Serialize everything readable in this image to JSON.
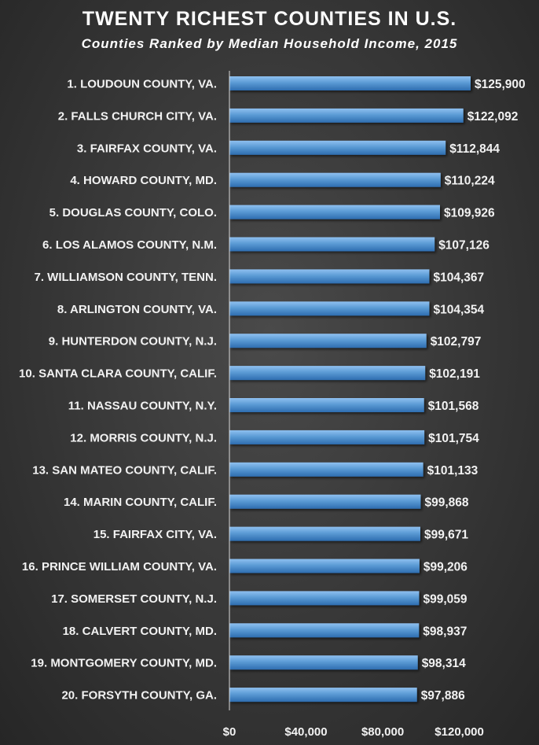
{
  "chart_data": {
    "type": "bar",
    "orientation": "horizontal",
    "title": "TWENTY RICHEST COUNTIES IN U.S.",
    "subtitle": "Counties Ranked by Median Household Income, 2015",
    "categories": [
      "1. LOUDOUN COUNTY, VA.",
      "2. FALLS CHURCH CITY, VA.",
      "3. FAIRFAX COUNTY, VA.",
      "4. HOWARD COUNTY, MD.",
      "5. DOUGLAS COUNTY, COLO.",
      "6. LOS ALAMOS COUNTY, N.M.",
      "7. WILLIAMSON COUNTY, TENN.",
      "8. ARLINGTON COUNTY, VA.",
      "9. HUNTERDON COUNTY, N.J.",
      "10. SANTA CLARA COUNTY, CALIF.",
      "11. NASSAU COUNTY, N.Y.",
      "12. MORRIS COUNTY, N.J.",
      "13. SAN MATEO COUNTY, CALIF.",
      "14. MARIN COUNTY, CALIF.",
      "15. FAIRFAX CITY, VA.",
      "16. PRINCE WILLIAM COUNTY, VA.",
      "17. SOMERSET COUNTY, N.J.",
      "18. CALVERT COUNTY, MD.",
      "19. MONTGOMERY COUNTY, MD.",
      "20. FORSYTH COUNTY, GA."
    ],
    "values": [
      125900,
      122092,
      112844,
      110224,
      109926,
      107126,
      104367,
      104354,
      102797,
      102191,
      101568,
      101754,
      101133,
      99868,
      99671,
      99206,
      99059,
      98937,
      98314,
      97886
    ],
    "data_labels": [
      "$125,900",
      "$122,092",
      "$112,844",
      "$110,224",
      "$109,926",
      "$107,126",
      "$104,367",
      "$104,354",
      "$102,797",
      "$102,191",
      "$101,568",
      "$101,754",
      "$101,133",
      "$99,868",
      "$99,671",
      "$99,206",
      "$99,059",
      "$98,937",
      "$98,314",
      "$97,886"
    ],
    "xlim": [
      0,
      130000
    ],
    "x_ticks": [
      0,
      40000,
      80000,
      120000
    ],
    "x_tick_labels": [
      "$0",
      "$40,000",
      "$80,000",
      "$120,000"
    ],
    "xlabel": "",
    "ylabel": "",
    "grid": false,
    "legend": "none",
    "colors": {
      "bar_light": "#8fc0f0",
      "bar_mid": "#5b9bd5",
      "bar_dark": "#2e6db0",
      "axis": "#d9d9d9",
      "text": "#f2f2f2"
    }
  }
}
